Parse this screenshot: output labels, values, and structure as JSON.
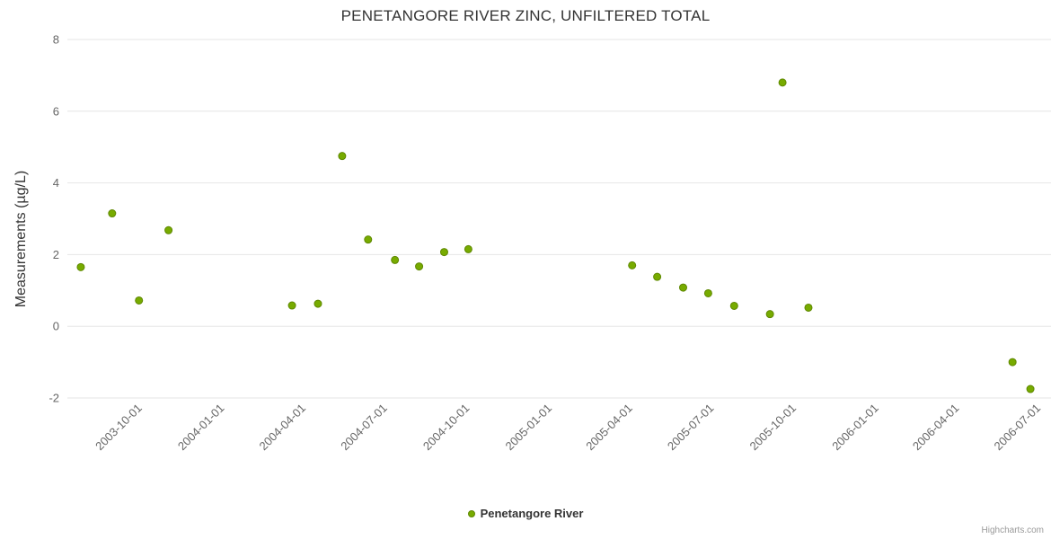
{
  "chart": {
    "credits": "Highcharts.com"
  },
  "chart_data": {
    "type": "scatter",
    "title": "PENETANGORE RIVER ZINC, UNFILTERED TOTAL",
    "xlabel": "",
    "ylabel": "Measurements (µg/L)",
    "ylim": [
      -2,
      8
    ],
    "y_ticks": [
      -2,
      0,
      2,
      4,
      6,
      8
    ],
    "x_ticks": [
      "2003-10-01",
      "2004-01-01",
      "2004-04-01",
      "2004-07-01",
      "2004-10-01",
      "2005-01-01",
      "2005-04-01",
      "2005-07-01",
      "2005-10-01",
      "2006-01-01",
      "2006-04-01",
      "2006-07-01"
    ],
    "x_range": [
      "2003-07-13",
      "2006-07-16"
    ],
    "grid": true,
    "legend_position": "bottom",
    "colors": {
      "gridline": "#e6e6e6",
      "tick_label": "#666666",
      "title_text": "#333333"
    },
    "series": [
      {
        "name": "Penetangore River",
        "color": "#77ab00",
        "marker_stroke": "#5e8700",
        "points": [
          [
            "2003-07-28",
            1.65
          ],
          [
            "2003-09-01",
            3.15
          ],
          [
            "2003-10-01",
            0.72
          ],
          [
            "2003-11-03",
            2.68
          ],
          [
            "2004-03-20",
            0.58
          ],
          [
            "2004-04-18",
            0.63
          ],
          [
            "2004-05-15",
            4.75
          ],
          [
            "2004-06-13",
            2.42
          ],
          [
            "2004-07-13",
            1.85
          ],
          [
            "2004-08-09",
            1.67
          ],
          [
            "2004-09-06",
            2.07
          ],
          [
            "2004-10-03",
            2.15
          ],
          [
            "2005-04-04",
            1.7
          ],
          [
            "2005-05-02",
            1.38
          ],
          [
            "2005-05-31",
            1.08
          ],
          [
            "2005-06-28",
            0.92
          ],
          [
            "2005-07-27",
            0.57
          ],
          [
            "2005-09-05",
            0.34
          ],
          [
            "2005-09-19",
            6.8
          ],
          [
            "2005-10-18",
            0.52
          ],
          [
            "2006-06-03",
            -1.0
          ],
          [
            "2006-06-23",
            -1.75
          ]
        ]
      }
    ]
  }
}
